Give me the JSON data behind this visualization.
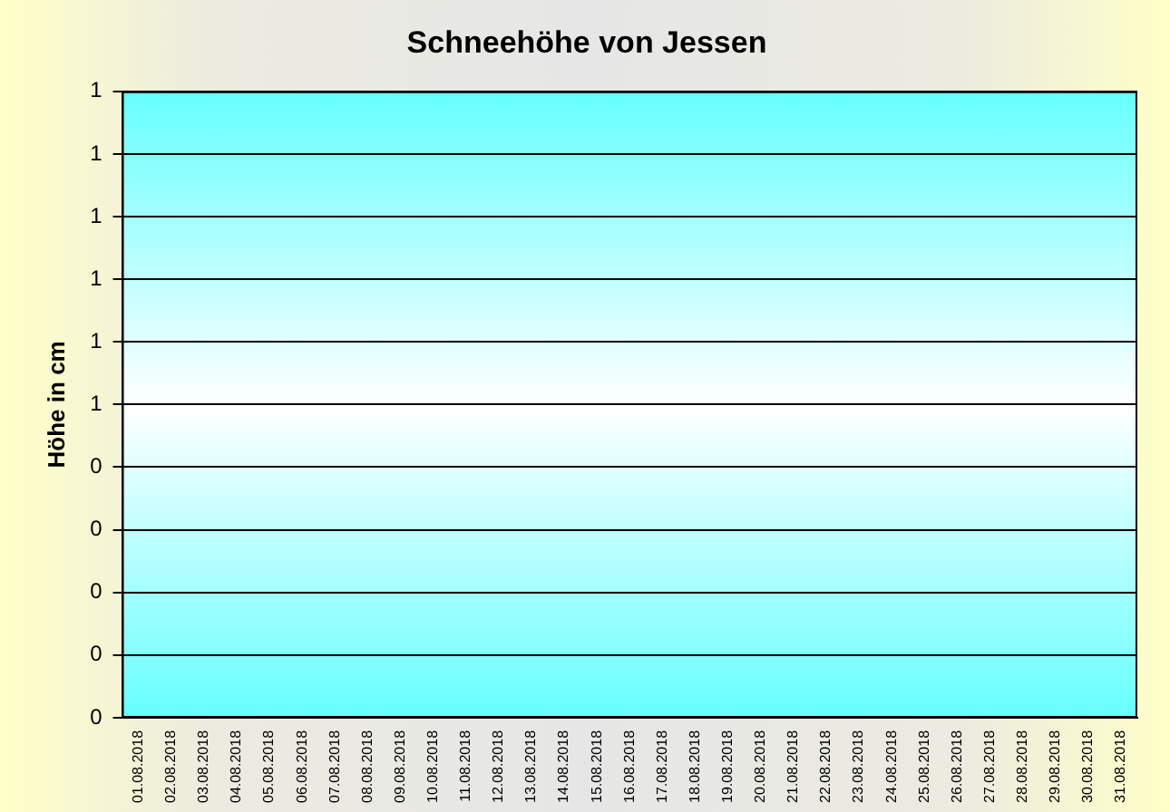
{
  "chart_data": {
    "type": "bar",
    "title": "Schneehöhe von Jessen",
    "ylabel": "Höhe in cm",
    "categories": [
      "01.08.2018",
      "02.08.2018",
      "03.08.2018",
      "04.08.2018",
      "05.08.2018",
      "06.08.2018",
      "07.08.2018",
      "08.08.2018",
      "09.08.2018",
      "10.08.2018",
      "11.08.2018",
      "12.08.2018",
      "13.08.2018",
      "14.08.2018",
      "15.08.2018",
      "16.08.2018",
      "17.08.2018",
      "18.08.2018",
      "19.08.2018",
      "20.08.2018",
      "21.08.2018",
      "22.08.2018",
      "23.08.2018",
      "24.08.2018",
      "25.08.2018",
      "26.08.2018",
      "27.08.2018",
      "28.08.2018",
      "29.08.2018",
      "30.08.2018",
      "31.08.2018"
    ],
    "values": [
      0,
      0,
      0,
      0,
      0,
      0,
      0,
      0,
      0,
      0,
      0,
      0,
      0,
      0,
      0,
      0,
      0,
      0,
      0,
      0,
      0,
      0,
      0,
      0,
      0,
      0,
      0,
      0,
      0,
      0,
      0
    ],
    "ylim": [
      0,
      1
    ],
    "yticks": [
      {
        "value": 0,
        "label": "0"
      },
      {
        "value": 0.1,
        "label": "0"
      },
      {
        "value": 0.2,
        "label": "0"
      },
      {
        "value": 0.3,
        "label": "0"
      },
      {
        "value": 0.4,
        "label": "0"
      },
      {
        "value": 0.5,
        "label": "1"
      },
      {
        "value": 0.6,
        "label": "1"
      },
      {
        "value": 0.7,
        "label": "1"
      },
      {
        "value": 0.8,
        "label": "1"
      },
      {
        "value": 0.9,
        "label": "1"
      },
      {
        "value": 1,
        "label": "1"
      }
    ],
    "grid": "y"
  }
}
